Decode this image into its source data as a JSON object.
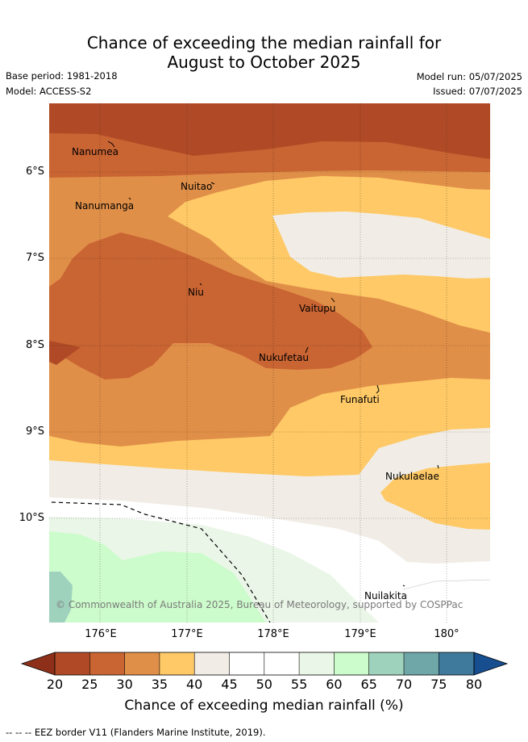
{
  "title_line1": "Chance of exceeding the median rainfall for",
  "title_line2": "August to October 2025",
  "base_period": "Base period: 1981-2018",
  "model": "Model: ACCESS-S2",
  "model_run": "Model run: 05/07/2025",
  "issued": "Issued: 07/07/2025",
  "lat_ticks": [
    "6°S",
    "7°S",
    "8°S",
    "9°S",
    "10°S"
  ],
  "lon_ticks": [
    "176°E",
    "177°E",
    "178°E",
    "179°E",
    "180°"
  ],
  "places": [
    "Nanumea",
    "Nuitao",
    "Nanumanga",
    "Niu",
    "Vaitupu",
    "Nukufetau",
    "Funafuti",
    "Nukulaelae",
    "Nuilakita"
  ],
  "copyright": "© Commonwealth of Australia 2025, Bureau of Meteorology, supported by COSPPac",
  "colorbar": {
    "ticks": [
      "20",
      "25",
      "30",
      "35",
      "40",
      "45",
      "50",
      "55",
      "60",
      "65",
      "70",
      "75",
      "80"
    ],
    "colors": {
      "below_20": "#8e3019",
      "20_25": "#b04a26",
      "25_30": "#c96433",
      "30_35": "#e08f48",
      "35_40": "#fec966",
      "40_45": "#f1ede6",
      "45_50": "#ffffff",
      "50_55": "#ffffff",
      "55_60": "#eaf6e7",
      "60_65": "#ccfccb",
      "65_70": "#9fd2bd",
      "70_75": "#6fa7a9",
      "75_80": "#3f7a9d",
      "above_80": "#164e8f"
    },
    "label": "Chance of exceeding median rainfall (%)"
  },
  "legend_eez": "-- -- -- EEZ border V11 (Flanders Marine Institute, 2019)."
}
